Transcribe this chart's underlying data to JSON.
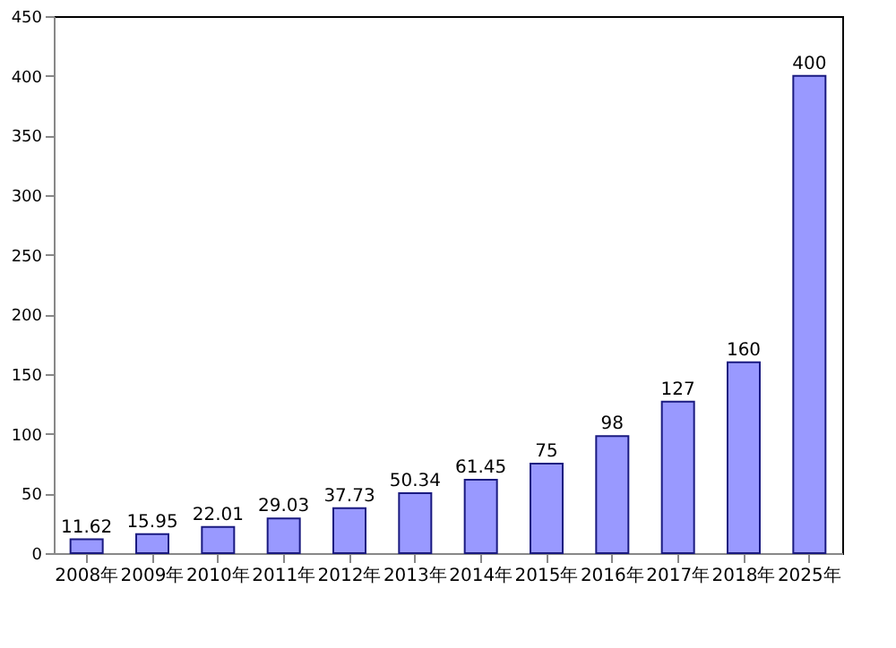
{
  "chart_data": {
    "type": "bar",
    "categories": [
      "2008年",
      "2009年",
      "2010年",
      "2011年",
      "2012年",
      "2013年",
      "2014年",
      "2015年",
      "2016年",
      "2017年",
      "2018年",
      "2025年"
    ],
    "values": [
      11.62,
      15.95,
      22.01,
      29.03,
      37.73,
      50.34,
      61.45,
      75,
      98,
      127,
      160,
      400
    ],
    "value_labels": [
      "11.62",
      "15.95",
      "22.01",
      "29.03",
      "37.73",
      "50.34",
      "61.45",
      "75",
      "98",
      "127",
      "160",
      "400"
    ],
    "color": "#9999ff",
    "ylim": [
      0,
      450
    ],
    "yticks": [
      0,
      50,
      100,
      150,
      200,
      250,
      300,
      350,
      400,
      450
    ],
    "grid": false
  }
}
